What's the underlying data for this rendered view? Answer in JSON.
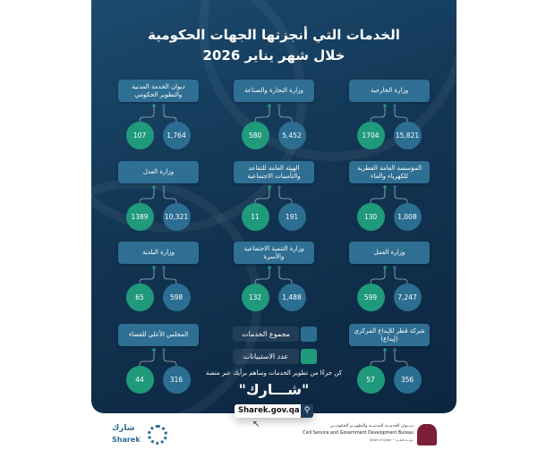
{
  "title_line1": "الخدمات التي أنجزتها الجهات الحكومية",
  "title_line2": "خلال شهر  يناير 2026",
  "colors": {
    "services": "#2c6d92",
    "responses": "#1f9a7b",
    "background": "#123553"
  },
  "entities": [
    {
      "name": "وزارة الخارجية",
      "responses": "1704",
      "services": "15,821"
    },
    {
      "name": "وزارة التجارة والصناعة",
      "responses": "580",
      "services": "5,452"
    },
    {
      "name": "ديوان الخدمة المدنية والتطوير الحكومي",
      "responses": "107",
      "services": "1,764"
    },
    {
      "name": "المؤسسة العامة القطرية للكهرباء والماء",
      "responses": "130",
      "services": "1,008"
    },
    {
      "name": "الهيئة العامة للتقاعد والتأمينات الاجتماعية",
      "responses": "11",
      "services": "191"
    },
    {
      "name": "وزارة العدل",
      "responses": "1389",
      "services": "10,321"
    },
    {
      "name": "وزارة العمل",
      "responses": "599",
      "services": "7,247"
    },
    {
      "name": "وزارة التنمية الاجتماعية والأسرة",
      "responses": "132",
      "services": "1,488"
    },
    {
      "name": "وزارة البلدية",
      "responses": "65",
      "services": "598"
    },
    {
      "name": "شركة قطر للإيداع المركزي (إيداع)",
      "responses": "57",
      "services": "356"
    },
    {
      "name": "المجلس الأعلى للقضاء",
      "responses": "44",
      "services": "316"
    }
  ],
  "legend": {
    "services": "مجموع الخدمات",
    "responses": "عدد الاستبيانات"
  },
  "cta": "كن جزءًا من تطوير الخدمات وساهم برأيك عبر منصة",
  "platform": "\"شـــارك\"",
  "url": "Sharek.gov.qa",
  "footer": {
    "sharek_ar": "شارك",
    "sharek_en": "Sharek",
    "bureau_ar": "ديـــوان الخدمـــة المدنيـــة والتطويـــر الحكومـــي",
    "bureau_en": "Civil Service and Government Development Bureau",
    "state": "State of Qatar • دولـــة قطـــر"
  }
}
